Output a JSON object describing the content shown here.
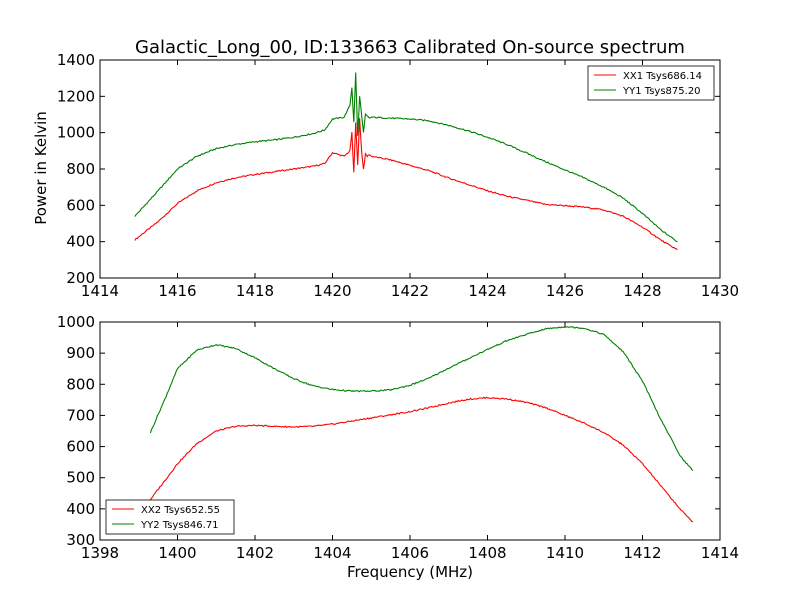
{
  "chart_data": [
    {
      "type": "line",
      "title": "Galactic_Long_00, ID:133663 Calibrated On-source spectrum",
      "xlabel": "",
      "ylabel": "Power in Kelvin",
      "xlim": [
        1414,
        1430
      ],
      "ylim": [
        200,
        1400
      ],
      "xticks": [
        1414,
        1416,
        1418,
        1420,
        1422,
        1424,
        1426,
        1428,
        1430
      ],
      "yticks": [
        200,
        400,
        600,
        800,
        1000,
        1200,
        1400
      ],
      "grid": false,
      "legend_position": "top-right",
      "series": [
        {
          "name": "XX1 Tsys686.14",
          "color": "#ff0000",
          "x": [
            1414.9,
            1415.5,
            1416.0,
            1416.5,
            1417.0,
            1417.5,
            1418.0,
            1418.5,
            1419.0,
            1419.5,
            1419.8,
            1420.0,
            1420.3,
            1420.45,
            1420.5,
            1420.55,
            1420.6,
            1420.65,
            1420.7,
            1420.75,
            1420.8,
            1420.85,
            1420.9,
            1420.95,
            1421.0,
            1421.5,
            1422.0,
            1422.5,
            1423.0,
            1423.5,
            1424.0,
            1424.5,
            1425.0,
            1425.5,
            1426.0,
            1426.5,
            1427.0,
            1427.5,
            1428.0,
            1428.5,
            1428.9
          ],
          "y": [
            410,
            510,
            610,
            680,
            725,
            752,
            770,
            785,
            800,
            815,
            830,
            890,
            870,
            900,
            1000,
            780,
            1060,
            820,
            1080,
            900,
            800,
            880,
            870,
            880,
            870,
            850,
            820,
            790,
            750,
            715,
            680,
            650,
            628,
            605,
            598,
            590,
            575,
            540,
            480,
            405,
            355
          ]
        },
        {
          "name": "YY1 Tsys875.20",
          "color": "#008000",
          "x": [
            1414.9,
            1415.5,
            1416.0,
            1416.5,
            1417.0,
            1417.5,
            1418.0,
            1418.5,
            1419.0,
            1419.5,
            1419.8,
            1420.0,
            1420.3,
            1420.45,
            1420.5,
            1420.55,
            1420.6,
            1420.65,
            1420.7,
            1420.75,
            1420.8,
            1420.85,
            1420.9,
            1420.95,
            1421.0,
            1421.5,
            1422.0,
            1422.5,
            1423.0,
            1423.5,
            1424.0,
            1424.5,
            1425.0,
            1425.5,
            1426.0,
            1426.5,
            1427.0,
            1427.5,
            1428.0,
            1428.5,
            1428.9
          ],
          "y": [
            540,
            680,
            800,
            870,
            912,
            935,
            950,
            960,
            975,
            995,
            1015,
            1075,
            1085,
            1150,
            1250,
            1060,
            1330,
            980,
            1200,
            1100,
            1000,
            1100,
            1090,
            1080,
            1085,
            1080,
            1075,
            1065,
            1040,
            1010,
            975,
            935,
            888,
            840,
            795,
            750,
            700,
            640,
            555,
            460,
            400
          ]
        }
      ]
    },
    {
      "type": "line",
      "title": "",
      "xlabel": "Frequency (MHz)",
      "ylabel": "",
      "xlim": [
        1398,
        1414
      ],
      "ylim": [
        300,
        1000
      ],
      "xticks": [
        1398,
        1400,
        1402,
        1404,
        1406,
        1408,
        1410,
        1412,
        1414
      ],
      "yticks": [
        300,
        400,
        500,
        600,
        700,
        800,
        900,
        1000
      ],
      "grid": false,
      "legend_position": "bottom-left",
      "series": [
        {
          "name": "XX2 Tsys652.55",
          "color": "#ff0000",
          "x": [
            1399.3,
            1399.7,
            1400.0,
            1400.5,
            1401.0,
            1401.5,
            1402.0,
            1402.5,
            1403.0,
            1403.5,
            1404.0,
            1404.5,
            1405.0,
            1405.5,
            1406.0,
            1406.5,
            1407.0,
            1407.5,
            1408.0,
            1408.5,
            1409.0,
            1409.5,
            1410.0,
            1410.5,
            1411.0,
            1411.5,
            1412.0,
            1412.5,
            1413.0,
            1413.3
          ],
          "y": [
            430,
            495,
            545,
            610,
            650,
            665,
            668,
            665,
            663,
            665,
            672,
            682,
            692,
            702,
            712,
            725,
            740,
            752,
            757,
            753,
            742,
            725,
            700,
            675,
            645,
            605,
            545,
            470,
            395,
            358
          ]
        },
        {
          "name": "YY2 Tsys846.71",
          "color": "#008000",
          "x": [
            1399.3,
            1399.7,
            1400.0,
            1400.5,
            1401.0,
            1401.5,
            1402.0,
            1402.5,
            1403.0,
            1403.5,
            1404.0,
            1404.5,
            1405.0,
            1405.5,
            1406.0,
            1406.5,
            1407.0,
            1407.5,
            1408.0,
            1408.5,
            1409.0,
            1409.5,
            1410.0,
            1410.5,
            1411.0,
            1411.5,
            1412.0,
            1412.5,
            1413.0,
            1413.3
          ],
          "y": [
            645,
            760,
            850,
            910,
            927,
            915,
            885,
            850,
            818,
            795,
            783,
            778,
            778,
            782,
            797,
            820,
            852,
            882,
            912,
            940,
            960,
            978,
            985,
            980,
            960,
            905,
            810,
            680,
            565,
            523
          ]
        }
      ]
    }
  ]
}
